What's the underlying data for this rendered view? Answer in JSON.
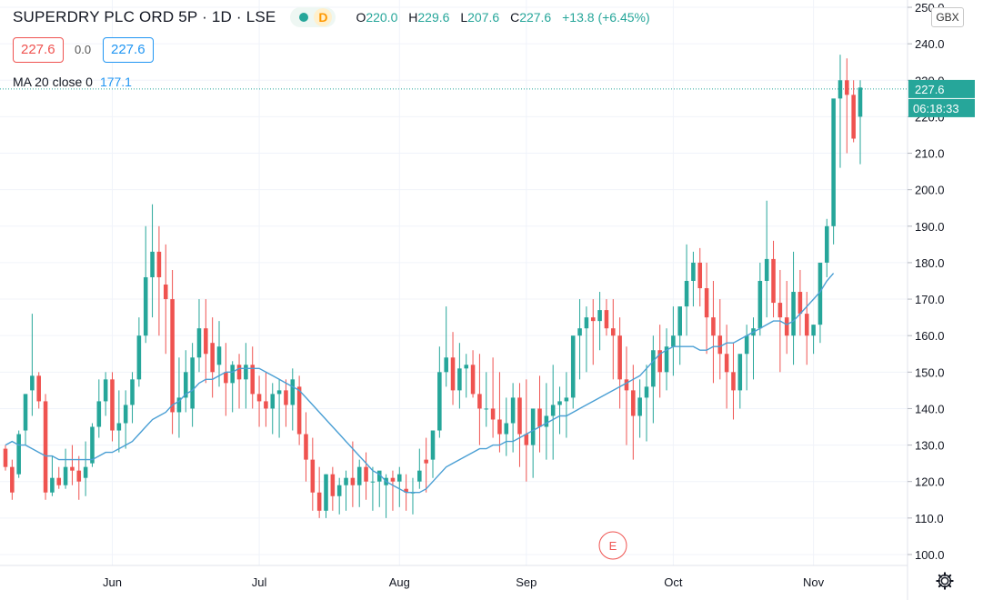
{
  "header": {
    "title": "SUPERDRY PLC ORD 5P · 1D · LSE",
    "interval_badge": "D",
    "ohlc": {
      "o_label": "O",
      "o": "220.0",
      "h_label": "H",
      "h": "229.6",
      "l_label": "L",
      "l": "207.6",
      "c_label": "C",
      "c": "227.6",
      "change": "+13.8 (+6.45%)"
    }
  },
  "trade": {
    "sell": "227.6",
    "spread": "0.0",
    "buy": "227.6"
  },
  "indicator": {
    "label": "MA 20 close 0",
    "value": "177.1"
  },
  "currency": "GBX",
  "price_label": "227.6",
  "countdown": "06:18:33",
  "earnings_marker": "E",
  "colors": {
    "up": "#26a69a",
    "down": "#ef5350",
    "ma": "#4a9fd4",
    "grid": "#f0f3fa"
  },
  "chart_data": {
    "type": "candlestick",
    "ylim": [
      97,
      252
    ],
    "yticks": [
      100,
      110,
      120,
      130,
      140,
      150,
      160,
      170,
      180,
      190,
      200,
      210,
      220,
      230,
      240,
      250
    ],
    "ytick_labels": [
      "100.0",
      "110.0",
      "120.0",
      "130.0",
      "140.0",
      "150.0",
      "160.0",
      "170.0",
      "180.0",
      "190.0",
      "200.0",
      "210.0",
      "220.0",
      "230.0",
      "240.0",
      "250.0"
    ],
    "x_month_labels": [
      "Jun",
      "Jul",
      "Aug",
      "Sep",
      "Oct",
      "Nov"
    ],
    "x_month_start_index": [
      16,
      38,
      59,
      78,
      100,
      121
    ],
    "series": [
      {
        "kind": "ohlc",
        "values": [
          [
            129,
            130,
            123,
            124
          ],
          [
            124,
            126,
            115,
            117
          ],
          [
            122,
            134,
            121,
            133
          ],
          [
            134,
            144,
            130,
            144
          ],
          [
            145,
            166,
            138,
            149
          ],
          [
            149,
            150,
            140,
            142
          ],
          [
            142,
            144,
            115,
            117
          ],
          [
            117,
            127,
            116,
            121
          ],
          [
            121,
            124,
            118,
            119
          ],
          [
            119,
            129,
            118,
            124
          ],
          [
            124,
            130,
            119,
            123
          ],
          [
            123,
            127,
            115,
            120
          ],
          [
            121,
            131,
            116,
            124
          ],
          [
            125,
            136,
            124,
            135
          ],
          [
            135,
            148,
            132,
            142
          ],
          [
            142,
            150,
            138,
            148
          ],
          [
            148,
            150,
            131,
            134
          ],
          [
            134,
            145,
            128,
            136
          ],
          [
            136,
            145,
            129,
            141
          ],
          [
            141,
            150,
            136,
            148
          ],
          [
            148,
            165,
            146,
            160
          ],
          [
            160,
            190,
            158,
            176
          ],
          [
            176,
            196,
            165,
            183
          ],
          [
            183,
            190,
            160,
            176
          ],
          [
            174,
            185,
            155,
            170
          ],
          [
            170,
            178,
            133,
            139
          ],
          [
            139,
            154,
            132,
            143
          ],
          [
            143,
            156,
            139,
            150
          ],
          [
            140,
            158,
            135,
            154
          ],
          [
            154,
            170,
            150,
            162
          ],
          [
            162,
            170,
            147,
            155
          ],
          [
            158,
            165,
            143,
            150
          ],
          [
            152,
            164,
            146,
            157
          ],
          [
            150,
            158,
            138,
            147
          ],
          [
            147,
            153,
            139,
            152
          ],
          [
            152,
            155,
            140,
            148
          ],
          [
            148,
            158,
            140,
            152
          ],
          [
            152,
            157,
            140,
            144
          ],
          [
            144,
            149,
            135,
            142
          ],
          [
            142,
            150,
            135,
            140
          ],
          [
            140,
            147,
            133,
            144
          ],
          [
            144,
            148,
            132,
            145
          ],
          [
            145,
            148,
            135,
            141
          ],
          [
            141,
            151,
            134,
            148
          ],
          [
            146,
            149,
            130,
            133
          ],
          [
            133,
            139,
            120,
            126
          ],
          [
            126,
            132,
            112,
            117
          ],
          [
            117,
            124,
            110,
            112
          ],
          [
            112,
            122,
            110,
            122
          ],
          [
            122,
            124,
            112,
            116
          ],
          [
            116,
            121,
            111,
            119
          ],
          [
            119,
            123,
            112,
            121
          ],
          [
            121,
            131,
            113,
            119
          ],
          [
            119,
            126,
            113,
            124
          ],
          [
            124,
            128,
            115,
            120
          ],
          [
            120,
            124,
            112,
            120
          ],
          [
            120,
            122,
            113,
            123
          ],
          [
            119,
            122,
            110,
            121
          ],
          [
            121,
            123,
            112,
            120
          ],
          [
            120,
            124,
            113,
            122
          ],
          [
            118,
            122,
            112,
            117
          ],
          [
            117,
            121,
            111,
            117
          ],
          [
            120,
            129,
            118,
            123
          ],
          [
            126,
            132,
            117,
            125
          ],
          [
            126,
            129,
            121,
            134
          ],
          [
            134,
            157,
            132,
            150
          ],
          [
            150,
            168,
            146,
            154
          ],
          [
            154,
            161,
            141,
            145
          ],
          [
            145,
            158,
            140,
            151
          ],
          [
            151,
            155,
            143,
            152
          ],
          [
            152,
            156,
            143,
            144
          ],
          [
            144,
            155,
            130,
            140
          ],
          [
            140,
            150,
            135,
            140
          ],
          [
            140,
            154,
            132,
            137
          ],
          [
            137,
            150,
            128,
            133
          ],
          [
            133,
            143,
            127,
            136
          ],
          [
            136,
            147,
            128,
            143
          ],
          [
            143,
            147,
            124,
            133
          ],
          [
            133,
            148,
            120,
            130
          ],
          [
            130,
            138,
            121,
            140
          ],
          [
            140,
            149,
            128,
            135
          ],
          [
            135,
            147,
            126,
            138
          ],
          [
            138,
            152,
            126,
            141
          ],
          [
            141,
            146,
            133,
            142
          ],
          [
            142,
            150,
            132,
            143
          ],
          [
            143,
            159,
            140,
            160
          ],
          [
            160,
            170,
            148,
            162
          ],
          [
            162,
            168,
            150,
            165
          ],
          [
            165,
            170,
            152,
            164
          ],
          [
            164,
            172,
            156,
            167
          ],
          [
            167,
            170,
            160,
            162
          ],
          [
            162,
            170,
            148,
            160
          ],
          [
            160,
            165,
            140,
            148
          ],
          [
            148,
            157,
            130,
            145
          ],
          [
            145,
            152,
            126,
            138
          ],
          [
            138,
            148,
            132,
            143
          ],
          [
            143,
            152,
            131,
            146
          ],
          [
            146,
            160,
            136,
            156
          ],
          [
            156,
            163,
            143,
            150
          ],
          [
            150,
            162,
            145,
            157
          ],
          [
            157,
            168,
            149,
            160
          ],
          [
            160,
            166,
            152,
            168
          ],
          [
            168,
            185,
            160,
            175
          ],
          [
            175,
            183,
            168,
            180
          ],
          [
            180,
            184,
            168,
            173
          ],
          [
            173,
            180,
            155,
            165
          ],
          [
            165,
            175,
            147,
            160
          ],
          [
            160,
            170,
            148,
            155
          ],
          [
            155,
            163,
            140,
            150
          ],
          [
            150,
            158,
            137,
            145
          ],
          [
            145,
            153,
            140,
            155
          ],
          [
            155,
            163,
            145,
            160
          ],
          [
            160,
            165,
            148,
            162
          ],
          [
            162,
            180,
            160,
            175
          ],
          [
            175,
            197,
            165,
            181
          ],
          [
            181,
            186,
            165,
            169
          ],
          [
            169,
            178,
            150,
            165
          ],
          [
            165,
            175,
            155,
            160
          ],
          [
            160,
            183,
            152,
            172
          ],
          [
            172,
            178,
            160,
            166
          ],
          [
            166,
            172,
            152,
            160
          ],
          [
            160,
            163,
            155,
            163
          ],
          [
            163,
            176,
            158,
            180
          ],
          [
            180,
            192,
            176,
            190
          ],
          [
            190,
            205,
            185,
            225
          ],
          [
            225,
            237,
            206,
            230
          ],
          [
            230,
            236,
            210,
            226
          ],
          [
            226,
            230,
            213,
            214
          ],
          [
            220,
            230,
            207,
            228
          ]
        ]
      },
      {
        "kind": "line",
        "name": "MA 20 close 0",
        "values": [
          130,
          131,
          130,
          130,
          129,
          128,
          127,
          127,
          126,
          126,
          126,
          126,
          126,
          126,
          127,
          128,
          128,
          129,
          130,
          131,
          133,
          135,
          137,
          138,
          139,
          141,
          142,
          144,
          145,
          147,
          148,
          148,
          149,
          150,
          150,
          151,
          151,
          151,
          151,
          150,
          149,
          148,
          147,
          146,
          145,
          143,
          141,
          139,
          137,
          135,
          133,
          131,
          129,
          127,
          125,
          123,
          122,
          120,
          119,
          118,
          117,
          117,
          117,
          118,
          120,
          122,
          124,
          125,
          126,
          127,
          128,
          129,
          129,
          130,
          130,
          131,
          131,
          132,
          133,
          134,
          135,
          136,
          137,
          138,
          138,
          139,
          140,
          141,
          142,
          143,
          144,
          145,
          146,
          147,
          148,
          149,
          151,
          153,
          155,
          156,
          157,
          157,
          157,
          157,
          156,
          156,
          157,
          157,
          158,
          158,
          159,
          160,
          161,
          162,
          163,
          164,
          164,
          163,
          164,
          166,
          168,
          170,
          172,
          175,
          177.1
        ]
      }
    ]
  }
}
